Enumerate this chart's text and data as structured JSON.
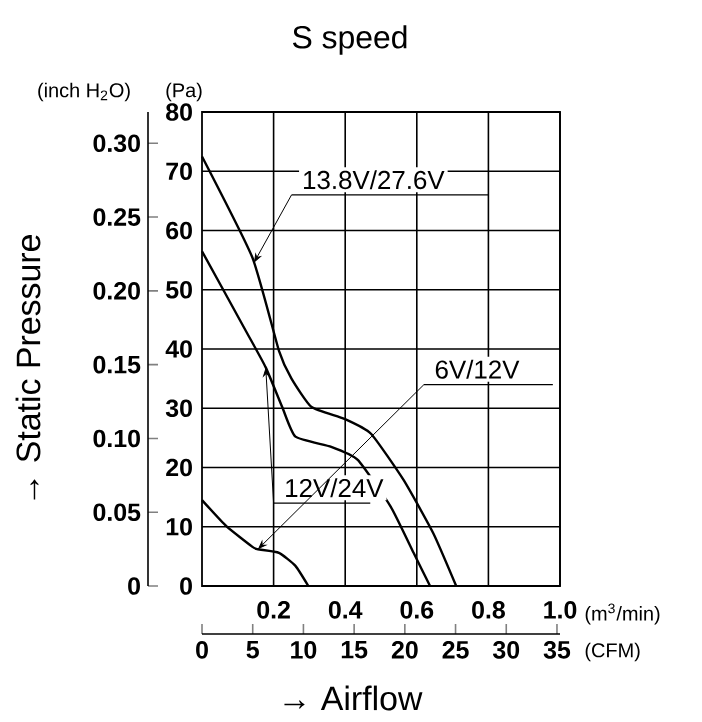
{
  "chart_data": {
    "type": "line",
    "title": "S speed",
    "annotations": [
      "→ Static Pressure",
      "(inch H$_{2}$O)",
      "(Pa)",
      "(m$^{3}$/min)",
      "(CFM)",
      "→ Airflow"
    ],
    "xlim": [
      0,
      1.0
    ],
    "xticks": [
      0.2,
      0.4,
      0.6,
      0.8,
      {
        "value": 1.0,
        "label": "1.0"
      }
    ],
    "ylim": [
      0,
      80
    ],
    "yticks": [
      0,
      10,
      20,
      30,
      40,
      50,
      60,
      70,
      80
    ],
    "y2lim": [
      0,
      0.3212
    ],
    "y2ticks": [
      0,
      0.05,
      {
        "value": 0.1,
        "label": "0.10"
      },
      0.15,
      {
        "value": 0.2,
        "label": "0.20"
      },
      0.25,
      {
        "value": 0.3,
        "label": "0.30"
      }
    ],
    "x2lim": [
      0,
      35.3
    ],
    "x2ticks": [
      0,
      5,
      10,
      15,
      20,
      25,
      30,
      35
    ],
    "grid": true,
    "marker": "none",
    "line_style": "solid",
    "series": [
      {
        "name": "13.8V/27.6V",
        "color": "#000000",
        "x": [
          0,
          0.141,
          0.215,
          0.25,
          0.306,
          0.398,
          0.472,
          0.563,
          0.646,
          0.71
        ],
        "values": [
          72.5,
          55.4,
          39.7,
          35,
          30.2,
          28.2,
          25.7,
          17.9,
          8.9,
          0
        ]
      },
      {
        "name": "12V/24V",
        "color": "#000000",
        "x": [
          0,
          0.123,
          0.178,
          0.224,
          0.261,
          0.361,
          0.435,
          0.527,
          0.591,
          0.637
        ],
        "values": [
          56.5,
          43,
          36.9,
          30.2,
          25.2,
          23.5,
          21.3,
          13.4,
          5.6,
          0
        ]
      },
      {
        "name": "6V/12V",
        "color": "#000000",
        "x": [
          0,
          0.068,
          0.141,
          0.156,
          0.215,
          0.261,
          0.297
        ],
        "values": [
          14.5,
          10.1,
          6.6,
          6.2,
          5.6,
          3.4,
          0
        ]
      }
    ]
  }
}
